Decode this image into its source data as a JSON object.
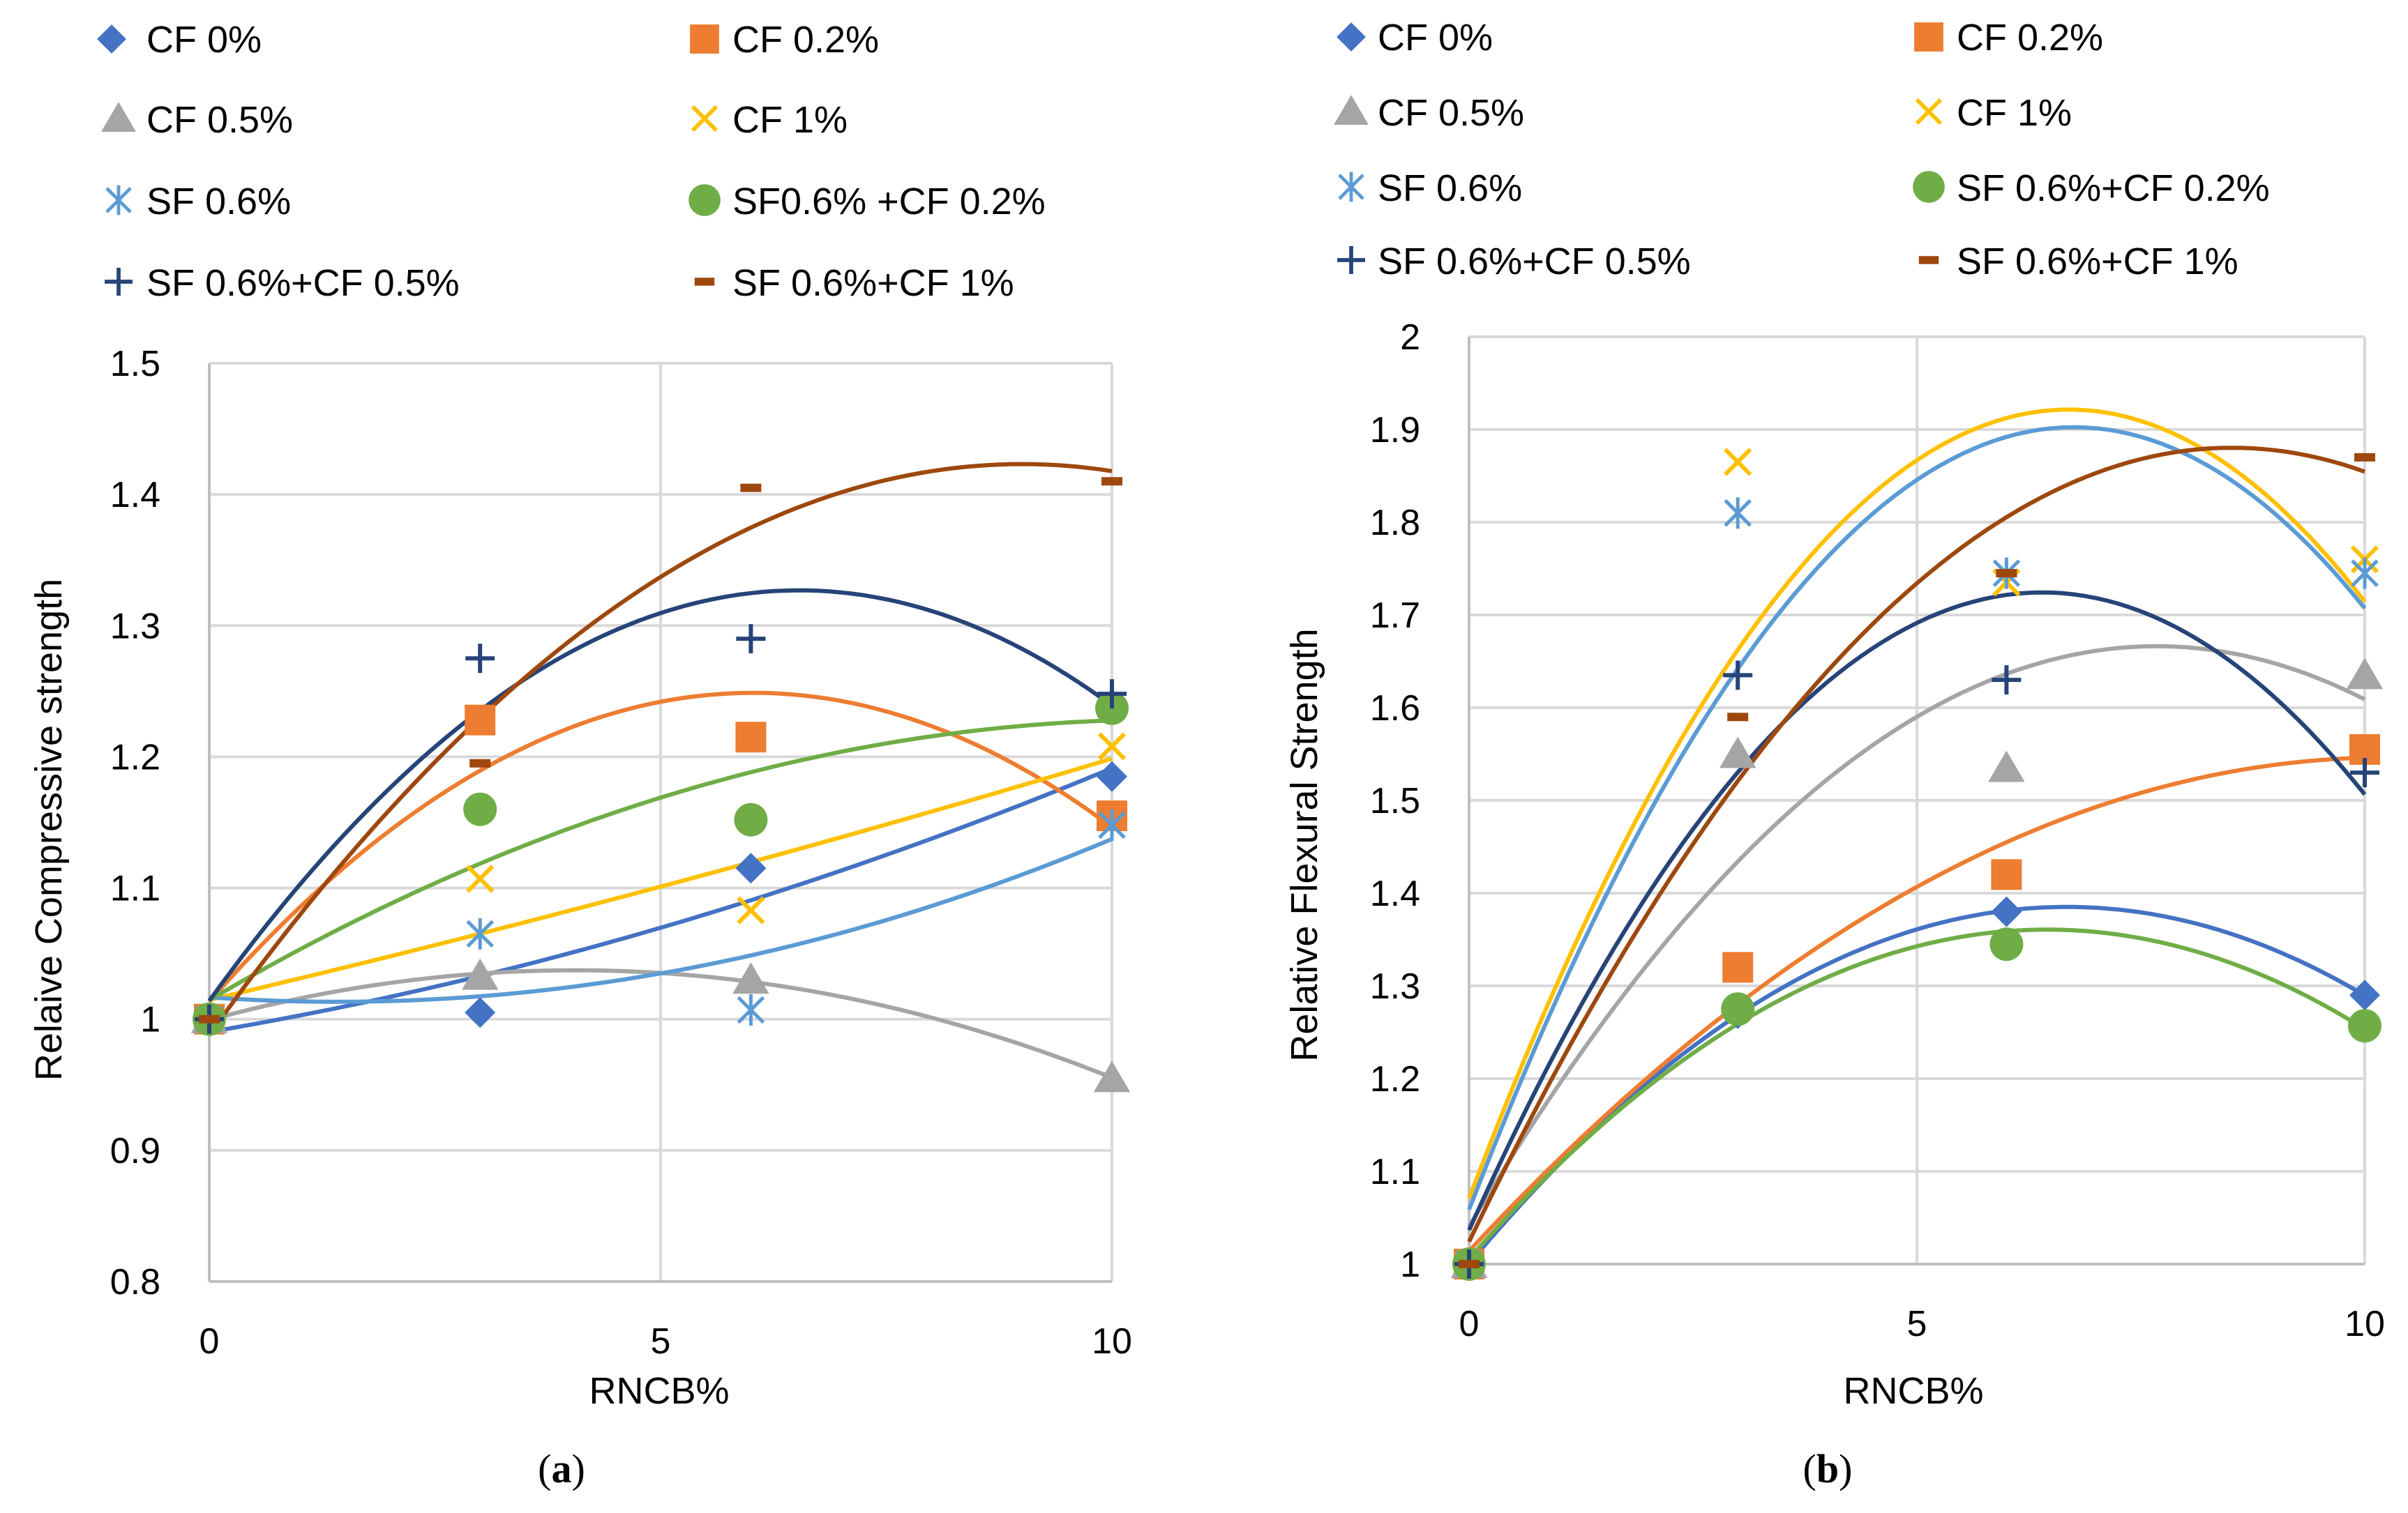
{
  "chart_data": [
    {
      "type": "scatter",
      "panel_label_open": "(",
      "panel_label_letter": "a",
      "panel_label_close": ")",
      "xlabel": "RNCB%",
      "ylabel": "Relaive Compressive strength",
      "xlim": [
        0,
        10
      ],
      "ylim": [
        0.8,
        1.5
      ],
      "xticks": [
        0,
        5,
        10
      ],
      "xtick_labels": [
        "0",
        "5",
        "10"
      ],
      "yticks": [
        0.8,
        0.9,
        1.0,
        1.1,
        1.2,
        1.3,
        1.4,
        1.5
      ],
      "ytick_labels": [
        "0.8",
        "0.9",
        "1",
        "1.1",
        "1.2",
        "1.3",
        "1.4",
        "1.5"
      ],
      "grid": true,
      "trendline": "polynomial order 2",
      "legend_position": "top",
      "x": [
        0,
        3,
        6,
        10
      ],
      "series": [
        {
          "name": "CF 0%",
          "marker": "diamond",
          "color": "#4472C4",
          "values": [
            1.0,
            1.005,
            1.115,
            1.185
          ]
        },
        {
          "name": "CF 0.2%",
          "marker": "square",
          "color": "#ED7D31",
          "values": [
            1.0,
            1.228,
            1.215,
            1.155
          ]
        },
        {
          "name": "CF 0.5%",
          "marker": "triangle",
          "color": "#A5A5A5",
          "values": [
            1.0,
            1.033,
            1.03,
            0.955
          ]
        },
        {
          "name": "CF 1%",
          "marker": "x",
          "color": "#FFC000",
          "values": [
            1.0,
            1.107,
            1.083,
            1.208
          ]
        },
        {
          "name": "SF 0.6%",
          "marker": "star",
          "color": "#5B9BD5",
          "values": [
            1.0,
            1.065,
            1.007,
            1.148
          ]
        },
        {
          "name": "SF0.6% +CF 0.2%",
          "marker": "circle",
          "color": "#70AD47",
          "values": [
            1.0,
            1.16,
            1.152,
            1.237
          ]
        },
        {
          "name": "SF 0.6%+CF 0.5%",
          "marker": "plus",
          "color": "#264478",
          "values": [
            1.0,
            1.275,
            1.29,
            1.248
          ]
        },
        {
          "name": "SF 0.6%+CF 1%",
          "marker": "dash",
          "color": "#9E480E",
          "values": [
            1.0,
            1.195,
            1.405,
            1.41
          ]
        }
      ]
    },
    {
      "type": "scatter",
      "panel_label_open": "(",
      "panel_label_letter": "b",
      "panel_label_close": ")",
      "xlabel": "RNCB%",
      "ylabel": "Relative Flexural Strength",
      "xlim": [
        0,
        10
      ],
      "ylim": [
        1.0,
        2.0
      ],
      "xticks": [
        0,
        5,
        10
      ],
      "xtick_labels": [
        "0",
        "5",
        "10"
      ],
      "yticks": [
        1.0,
        1.1,
        1.2,
        1.3,
        1.4,
        1.5,
        1.6,
        1.7,
        1.8,
        1.9,
        2.0
      ],
      "ytick_labels": [
        "1",
        "1.1",
        "1.2",
        "1.3",
        "1.4",
        "1.5",
        "1.6",
        "1.7",
        "1.8",
        "1.9",
        "2"
      ],
      "grid": true,
      "trendline": "polynomial order 2",
      "legend_position": "top",
      "x": [
        0,
        3,
        6,
        10
      ],
      "series": [
        {
          "name": "CF 0%",
          "marker": "diamond",
          "color": "#4472C4",
          "values": [
            1.0,
            1.27,
            1.38,
            1.29
          ]
        },
        {
          "name": "CF 0.2%",
          "marker": "square",
          "color": "#ED7D31",
          "values": [
            1.0,
            1.32,
            1.42,
            1.555
          ]
        },
        {
          "name": "CF 0.5%",
          "marker": "triangle",
          "color": "#A5A5A5",
          "values": [
            1.0,
            1.55,
            1.535,
            1.635
          ]
        },
        {
          "name": "CF  1%",
          "marker": "x",
          "color": "#FFC000",
          "values": [
            1.0,
            1.865,
            1.735,
            1.76
          ]
        },
        {
          "name": "SF 0.6%",
          "marker": "star",
          "color": "#5B9BD5",
          "values": [
            1.0,
            1.81,
            1.745,
            1.745
          ]
        },
        {
          "name": "SF 0.6%+CF 0.2%",
          "marker": "circle",
          "color": "#70AD47",
          "values": [
            1.0,
            1.275,
            1.345,
            1.257
          ]
        },
        {
          "name": "SF 0.6%+CF 0.5%",
          "marker": "plus",
          "color": "#264478",
          "values": [
            1.0,
            1.635,
            1.63,
            1.53
          ]
        },
        {
          "name": "SF 0.6%+CF 1%",
          "marker": "dash",
          "color": "#9E480E",
          "values": [
            1.0,
            1.59,
            1.745,
            1.87
          ]
        }
      ]
    }
  ]
}
